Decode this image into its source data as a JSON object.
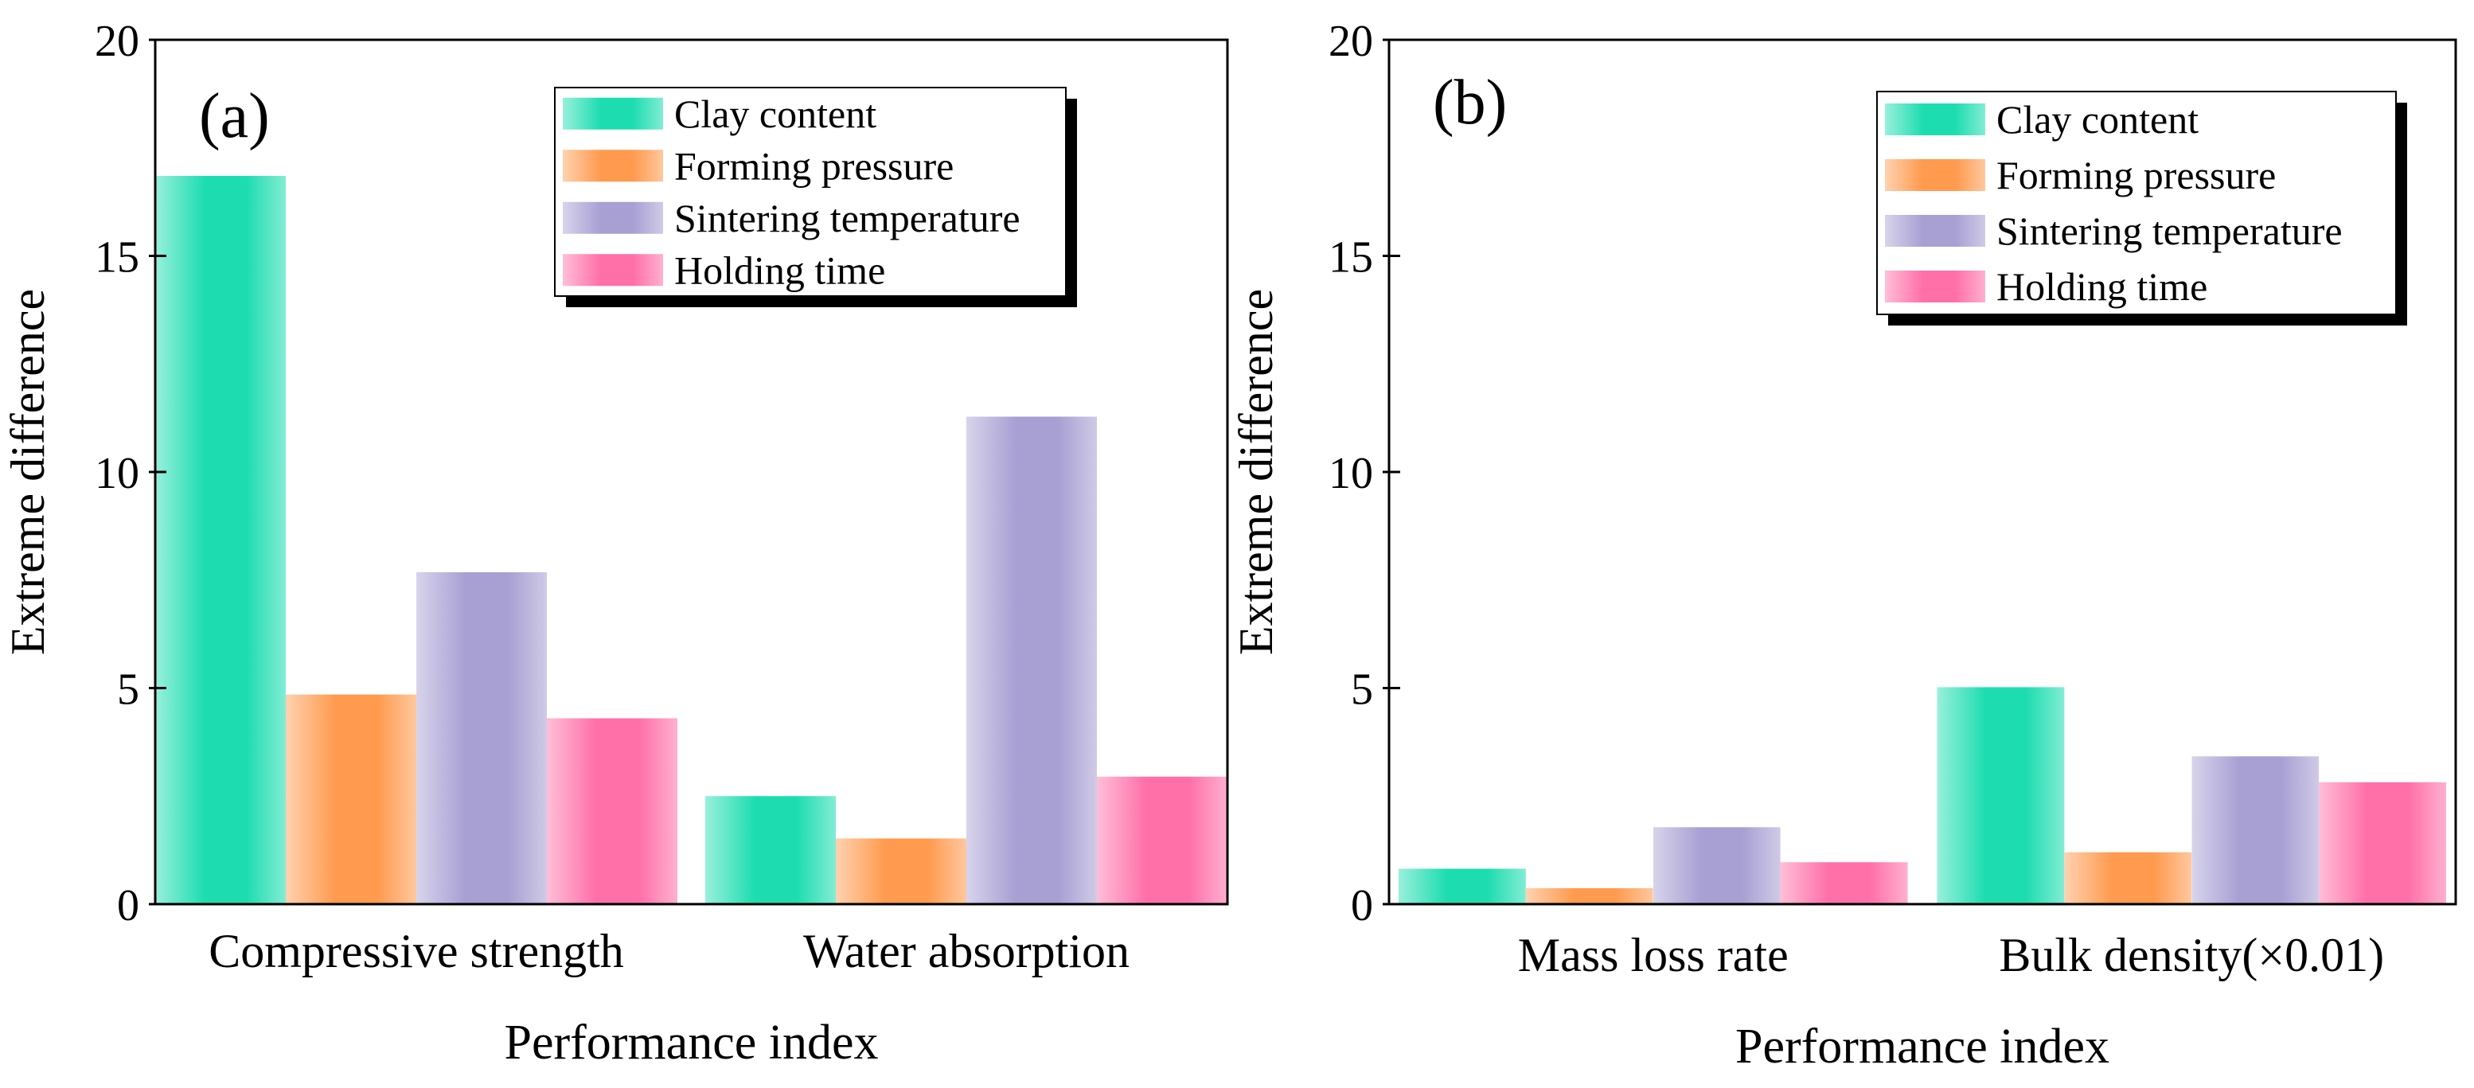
{
  "colors": {
    "clay": "#1DDDB0",
    "pressure": "#FF9A4E",
    "sintering": "#A89FD3",
    "holding": "#FF6FA8",
    "axis": "#000000"
  },
  "legend_labels": [
    "Clay content",
    "Forming pressure",
    "Sintering temperature",
    "Holding time"
  ],
  "chart_data": [
    {
      "type": "bar",
      "panel_label": "(a)",
      "title": "",
      "xlabel": "Performance index",
      "ylabel": "Extreme difference",
      "ylim": [
        0,
        20
      ],
      "yticks": [
        0,
        5,
        10,
        15,
        20
      ],
      "legend_position": "top-right",
      "categories": [
        "Compressive strength",
        "Water absorption"
      ],
      "series": [
        {
          "name": "Clay content",
          "color_key": "clay",
          "values": [
            16.85,
            2.5
          ]
        },
        {
          "name": "Forming pressure",
          "color_key": "pressure",
          "values": [
            4.85,
            1.52
          ]
        },
        {
          "name": "Sintering temperature",
          "color_key": "sintering",
          "values": [
            7.68,
            11.28
          ]
        },
        {
          "name": "Holding time",
          "color_key": "holding",
          "values": [
            4.3,
            2.95
          ]
        }
      ]
    },
    {
      "type": "bar",
      "panel_label": "(b)",
      "title": "",
      "xlabel": "Performance index",
      "ylabel": "Extreme difference",
      "ylim": [
        0,
        20
      ],
      "yticks": [
        0,
        5,
        10,
        15,
        20
      ],
      "legend_position": "top-right",
      "categories": [
        "Mass loss rate",
        "Bulk density(×0.01)"
      ],
      "series": [
        {
          "name": "Clay content",
          "color_key": "clay",
          "values": [
            0.82,
            5.02
          ]
        },
        {
          "name": "Forming pressure",
          "color_key": "pressure",
          "values": [
            0.37,
            1.2
          ]
        },
        {
          "name": "Sintering temperature",
          "color_key": "sintering",
          "values": [
            1.78,
            3.42
          ]
        },
        {
          "name": "Holding time",
          "color_key": "holding",
          "values": [
            0.97,
            2.82
          ]
        }
      ]
    }
  ]
}
